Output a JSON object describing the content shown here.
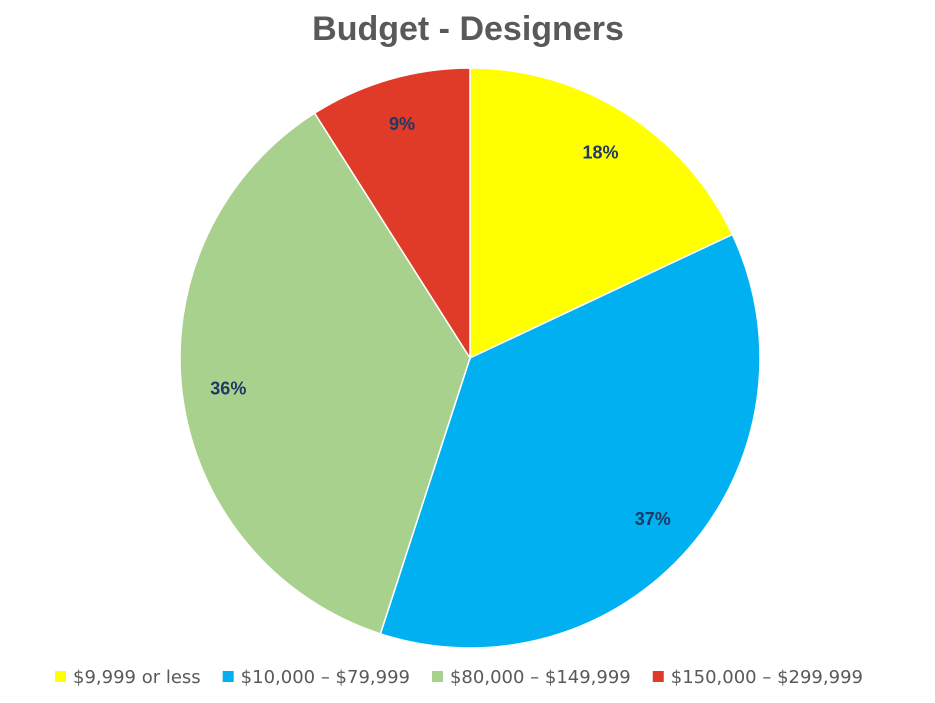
{
  "chart_data": {
    "type": "pie",
    "title": "Budget - Designers",
    "categories": [
      "$9,999 or less",
      "$10,000 – $79,999",
      "$80,000 – $149,999",
      "$150,000 – $299,999"
    ],
    "values": [
      18,
      37,
      36,
      9
    ],
    "value_labels": [
      "18%",
      "37%",
      "36%",
      "9%"
    ],
    "colors": [
      "#FFFF00",
      "#00B0F0",
      "#A9D18E",
      "#E03A28"
    ],
    "start_angle_deg": 0,
    "direction": "clockwise",
    "legend_position": "bottom",
    "label_color": "#203864"
  }
}
